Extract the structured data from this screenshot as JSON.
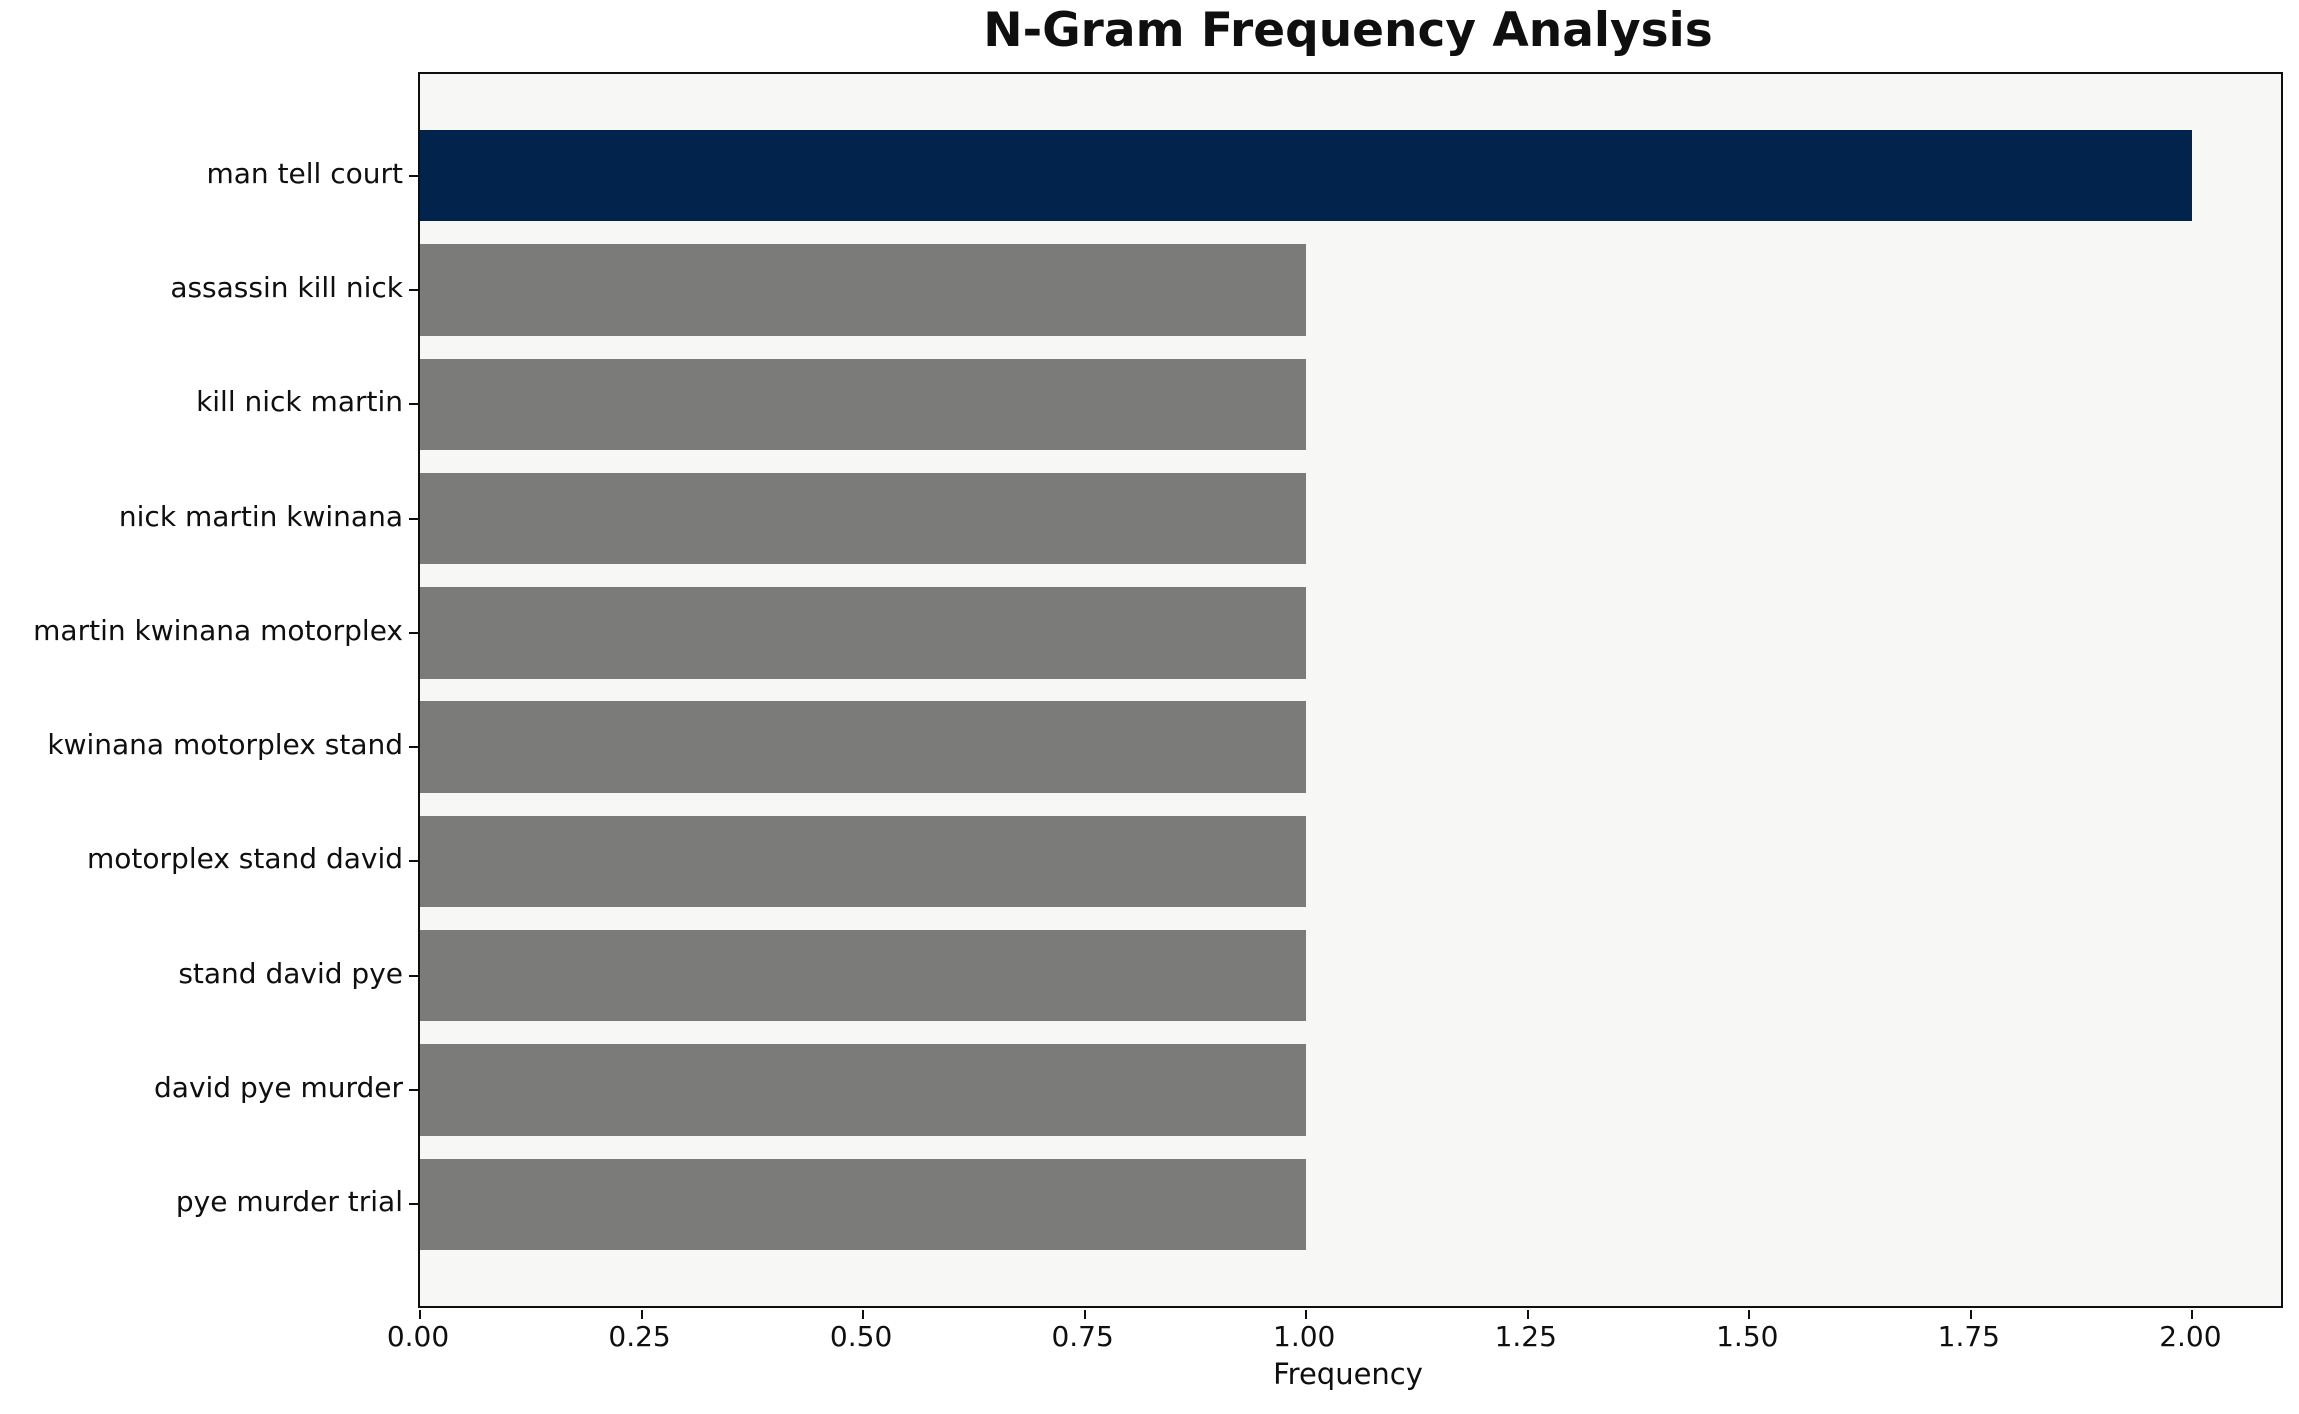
{
  "chart_data": {
    "type": "bar",
    "orientation": "horizontal",
    "title": "N-Gram Frequency Analysis",
    "xlabel": "Frequency",
    "ylabel": "",
    "categories": [
      "man tell court",
      "assassin kill nick",
      "kill nick martin",
      "nick martin kwinana",
      "martin kwinana motorplex",
      "kwinana motorplex stand",
      "motorplex stand david",
      "stand david pye",
      "david pye murder",
      "pye murder trial"
    ],
    "values": [
      2,
      1,
      1,
      1,
      1,
      1,
      1,
      1,
      1,
      1
    ],
    "highlight_index": 0,
    "xlim": [
      0,
      2.1
    ],
    "xticks": [
      0,
      0.25,
      0.5,
      0.75,
      1.0,
      1.25,
      1.5,
      1.75,
      2.0
    ],
    "xtick_labels": [
      "0.00",
      "0.25",
      "0.50",
      "0.75",
      "1.00",
      "1.25",
      "1.50",
      "1.75",
      "2.00"
    ],
    "grid": false,
    "legend_position": "none",
    "colors": {
      "highlight_bar": "#02234C",
      "default_bar": "#7B7B79",
      "plot_background": "#F7F7F5",
      "figure_background": "#FFFFFF",
      "axis": "#0F0F0F",
      "text": "#0F0F0F"
    }
  }
}
